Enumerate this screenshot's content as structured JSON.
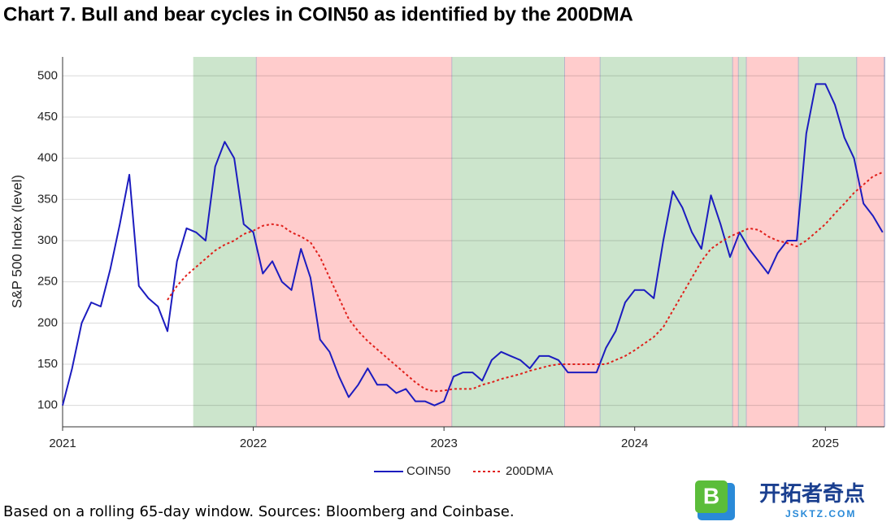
{
  "chart_data": {
    "type": "line",
    "title": "Chart 7. Bull and bear cycles in COIN50 as identified by the 200DMA",
    "ylabel": "S&P 500 Index (level)",
    "footnote": "Based on a rolling 65-day window. Sources: Bloomberg and Coinbase.",
    "watermark": [
      "开拓者奇点",
      "JSKTZ.COM"
    ],
    "xlim": [
      2021,
      2025.31
    ],
    "xticks": [
      2021,
      2022,
      2023,
      2024,
      2025
    ],
    "ylim": [
      74,
      523
    ],
    "yticks": [
      100,
      150,
      200,
      250,
      300,
      350,
      400,
      450,
      500
    ],
    "grid": true,
    "legend": "bottom",
    "regions": [
      {
        "x0": 2021.685,
        "x1": 2022.017,
        "color": "#cce5cc"
      },
      {
        "x0": 2022.017,
        "x1": 2023.043,
        "color": "#ffcccc"
      },
      {
        "x0": 2023.043,
        "x1": 2023.634,
        "color": "#cce5cc"
      },
      {
        "x0": 2023.634,
        "x1": 2023.82,
        "color": "#ffcccc"
      },
      {
        "x0": 2023.82,
        "x1": 2024.515,
        "color": "#cce5cc"
      },
      {
        "x0": 2024.515,
        "x1": 2024.545,
        "color": "#ffcccc"
      },
      {
        "x0": 2024.545,
        "x1": 2024.587,
        "color": "#cce5cc"
      },
      {
        "x0": 2024.587,
        "x1": 2024.86,
        "color": "#ffcccc"
      },
      {
        "x0": 2024.86,
        "x1": 2025.166,
        "color": "#cce5cc"
      },
      {
        "x0": 2025.166,
        "x1": 2025.31,
        "color": "#ffcccc"
      }
    ],
    "x": [
      2021,
      2021.05,
      2021.1,
      2021.15,
      2021.2,
      2021.25,
      2021.3,
      2021.35,
      2021.4,
      2021.45,
      2021.5,
      2021.55,
      2021.6,
      2021.65,
      2021.7,
      2021.75,
      2021.8,
      2021.85,
      2021.9,
      2021.95,
      2022,
      2022.05,
      2022.1,
      2022.15,
      2022.2,
      2022.25,
      2022.3,
      2022.35,
      2022.4,
      2022.45,
      2022.5,
      2022.55,
      2022.6,
      2022.65,
      2022.7,
      2022.75,
      2022.8,
      2022.85,
      2022.9,
      2022.95,
      2023,
      2023.05,
      2023.1,
      2023.15,
      2023.2,
      2023.25,
      2023.3,
      2023.35,
      2023.4,
      2023.45,
      2023.5,
      2023.55,
      2023.6,
      2023.65,
      2023.7,
      2023.75,
      2023.8,
      2023.85,
      2023.9,
      2023.95,
      2024,
      2024.05,
      2024.1,
      2024.15,
      2024.2,
      2024.25,
      2024.3,
      2024.35,
      2024.4,
      2024.45,
      2024.5,
      2024.55,
      2024.6,
      2024.65,
      2024.7,
      2024.75,
      2024.8,
      2024.85,
      2024.9,
      2024.95,
      2025,
      2025.05,
      2025.1,
      2025.15,
      2025.2,
      2025.25,
      2025.3
    ],
    "series": [
      {
        "name": "COIN50",
        "color": "#1c1cbf",
        "dash": false,
        "values": [
          100,
          145,
          200,
          225,
          220,
          265,
          320,
          380,
          245,
          230,
          220,
          190,
          275,
          315,
          310,
          300,
          390,
          420,
          400,
          320,
          310,
          260,
          275,
          250,
          240,
          290,
          255,
          180,
          165,
          135,
          110,
          125,
          145,
          125,
          125,
          115,
          120,
          105,
          105,
          100,
          105,
          135,
          140,
          140,
          130,
          155,
          165,
          160,
          155,
          145,
          160,
          160,
          155,
          140,
          140,
          140,
          140,
          170,
          190,
          225,
          240,
          240,
          230,
          300,
          360,
          340,
          310,
          290,
          355,
          320,
          280,
          310,
          290,
          275,
          260,
          285,
          300,
          300,
          430,
          490,
          490,
          465,
          425,
          400,
          345,
          330,
          310
        ]
      },
      {
        "name": "200DMA",
        "color": "#e0201b",
        "dash": true,
        "values": [
          null,
          null,
          null,
          null,
          null,
          null,
          null,
          null,
          null,
          null,
          null,
          228,
          245,
          258,
          268,
          278,
          288,
          295,
          300,
          308,
          312,
          318,
          320,
          318,
          310,
          305,
          298,
          280,
          255,
          230,
          205,
          190,
          178,
          168,
          158,
          148,
          138,
          128,
          120,
          117,
          118,
          120,
          120,
          120,
          125,
          128,
          132,
          135,
          138,
          142,
          145,
          148,
          150,
          150,
          150,
          150,
          150,
          150,
          155,
          160,
          167,
          175,
          183,
          195,
          215,
          235,
          255,
          275,
          290,
          298,
          305,
          310,
          315,
          313,
          305,
          300,
          297,
          293,
          300,
          310,
          320,
          333,
          345,
          358,
          368,
          378,
          383
        ]
      }
    ]
  }
}
